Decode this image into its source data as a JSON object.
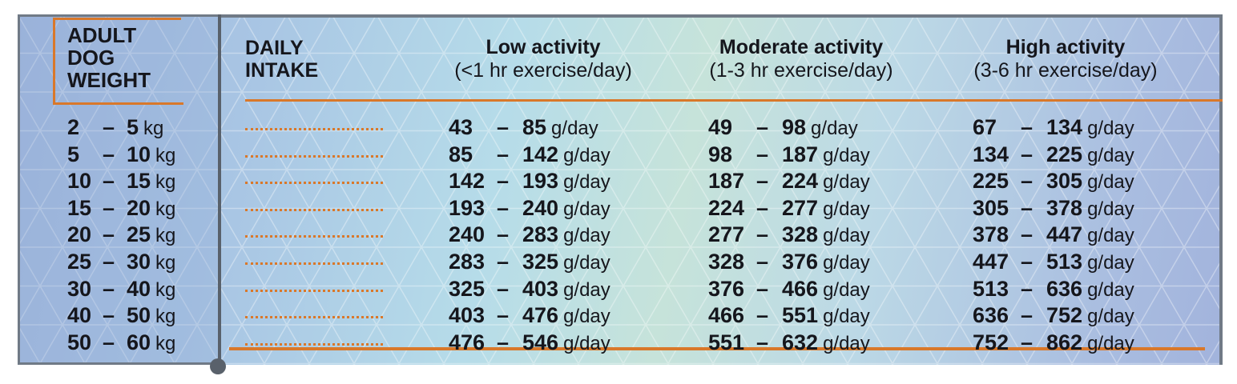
{
  "table": {
    "weight_header": [
      "ADULT",
      "DOG",
      "WEIGHT"
    ],
    "intake_header": [
      "DAILY",
      "INTAKE"
    ],
    "columns": [
      {
        "title": "Low activity",
        "subtitle": "(<1 hr exercise/day)"
      },
      {
        "title": "Moderate activity",
        "subtitle": "(1-3 hr exercise/day)"
      },
      {
        "title": "High activity",
        "subtitle": "(3-6 hr exercise/day)"
      }
    ],
    "weight_unit": "kg",
    "intake_unit": "g/day",
    "dash": "–",
    "rows": [
      {
        "w_min": "2",
        "w_max": "5",
        "low": [
          "43",
          "85"
        ],
        "mod": [
          "49",
          "98"
        ],
        "high": [
          "67",
          "134"
        ]
      },
      {
        "w_min": "5",
        "w_max": "10",
        "low": [
          "85",
          "142"
        ],
        "mod": [
          "98",
          "187"
        ],
        "high": [
          "134",
          "225"
        ]
      },
      {
        "w_min": "10",
        "w_max": "15",
        "low": [
          "142",
          "193"
        ],
        "mod": [
          "187",
          "224"
        ],
        "high": [
          "225",
          "305"
        ]
      },
      {
        "w_min": "15",
        "w_max": "20",
        "low": [
          "193",
          "240"
        ],
        "mod": [
          "224",
          "277"
        ],
        "high": [
          "305",
          "378"
        ]
      },
      {
        "w_min": "20",
        "w_max": "25",
        "low": [
          "240",
          "283"
        ],
        "mod": [
          "277",
          "328"
        ],
        "high": [
          "378",
          "447"
        ]
      },
      {
        "w_min": "25",
        "w_max": "30",
        "low": [
          "283",
          "325"
        ],
        "mod": [
          "328",
          "376"
        ],
        "high": [
          "447",
          "513"
        ]
      },
      {
        "w_min": "30",
        "w_max": "40",
        "low": [
          "325",
          "403"
        ],
        "mod": [
          "376",
          "466"
        ],
        "high": [
          "513",
          "636"
        ]
      },
      {
        "w_min": "40",
        "w_max": "50",
        "low": [
          "403",
          "476"
        ],
        "mod": [
          "466",
          "551"
        ],
        "high": [
          "636",
          "752"
        ]
      },
      {
        "w_min": "50",
        "w_max": "60",
        "low": [
          "476",
          "546"
        ],
        "mod": [
          "551",
          "632"
        ],
        "high": [
          "752",
          "862"
        ]
      }
    ]
  },
  "colors": {
    "accent": "#d9782a",
    "border": "#59616b",
    "text": "#15161c"
  }
}
